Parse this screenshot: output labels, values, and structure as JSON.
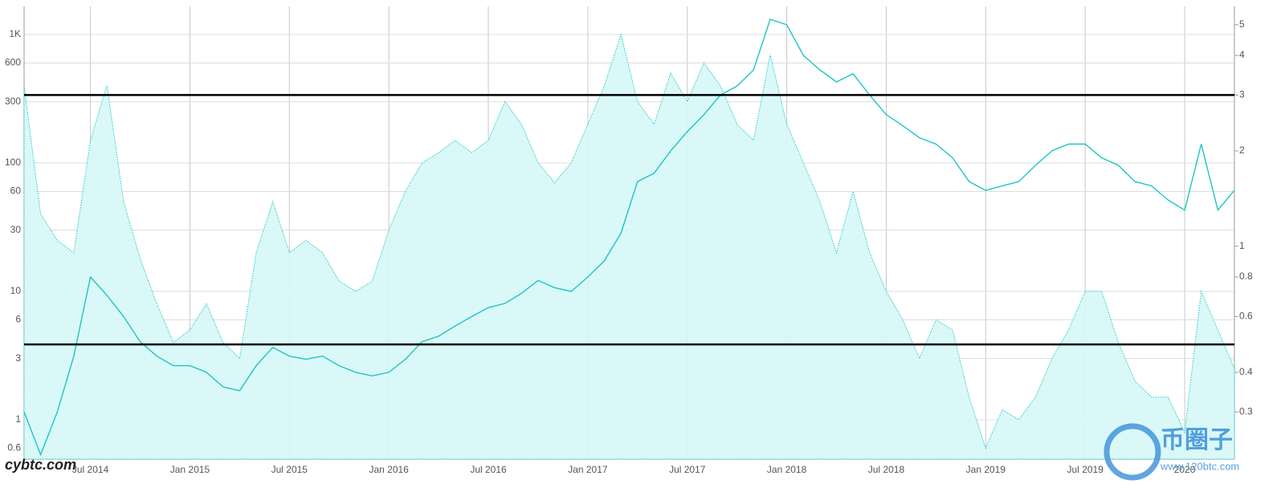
{
  "chart_data": {
    "type": "line",
    "x": [
      "2014-03",
      "2014-04",
      "2014-05",
      "2014-06",
      "2014-07",
      "2014-08",
      "2014-09",
      "2014-10",
      "2014-11",
      "2014-12",
      "2015-01",
      "2015-02",
      "2015-03",
      "2015-04",
      "2015-05",
      "2015-06",
      "2015-07",
      "2015-08",
      "2015-09",
      "2015-10",
      "2015-11",
      "2015-12",
      "2016-01",
      "2016-02",
      "2016-03",
      "2016-04",
      "2016-05",
      "2016-06",
      "2016-07",
      "2016-08",
      "2016-09",
      "2016-10",
      "2016-11",
      "2016-12",
      "2017-01",
      "2017-02",
      "2017-03",
      "2017-04",
      "2017-05",
      "2017-06",
      "2017-07",
      "2017-08",
      "2017-09",
      "2017-10",
      "2017-11",
      "2017-12",
      "2018-01",
      "2018-02",
      "2018-03",
      "2018-04",
      "2018-05",
      "2018-06",
      "2018-07",
      "2018-08",
      "2018-09",
      "2018-10",
      "2018-11",
      "2018-12",
      "2019-01",
      "2019-02",
      "2019-03",
      "2019-04",
      "2019-05",
      "2019-06",
      "2019-07",
      "2019-08",
      "2019-09",
      "2019-10",
      "2019-11",
      "2019-12",
      "2020-01",
      "2020-02",
      "2020-03",
      "2020-04"
    ],
    "xlim": [
      "2014-03",
      "2020-04"
    ],
    "xticks": [
      {
        "value": "2014-07",
        "label": "Jul 2014"
      },
      {
        "value": "2015-01",
        "label": "Jan 2015"
      },
      {
        "value": "2015-07",
        "label": "Jul 2015"
      },
      {
        "value": "2016-01",
        "label": "Jan 2016"
      },
      {
        "value": "2016-07",
        "label": "Jul 2016"
      },
      {
        "value": "2017-01",
        "label": "Jan 2017"
      },
      {
        "value": "2017-07",
        "label": "Jul 2017"
      },
      {
        "value": "2018-01",
        "label": "Jan 2018"
      },
      {
        "value": "2018-07",
        "label": "Jul 2018"
      },
      {
        "value": "2019-01",
        "label": "Jan 2019"
      },
      {
        "value": "2019-07",
        "label": "Jul 2019"
      },
      {
        "value": "2020-01",
        "label": "2020"
      }
    ],
    "log_scale": true,
    "grid": true,
    "ylim": [
      0.494,
      1656
    ],
    "yticks": [
      0.6,
      1,
      3,
      6,
      10,
      30,
      60,
      100,
      300,
      600,
      {
        "value": 1000,
        "label": "1K"
      }
    ],
    "y2lim": [
      0.213,
      5.71
    ],
    "y2ticks": [
      0.3,
      0.4,
      0.6,
      0.8,
      1,
      2,
      3,
      4,
      5
    ],
    "hlines_y2": [
      3,
      0.49
    ],
    "series": [
      {
        "color": "#22c8c8",
        "fill": "#d6f7f7",
        "values": [
          400,
          40,
          25,
          20,
          150,
          400,
          50,
          18,
          8,
          4,
          5,
          8,
          4,
          3,
          20,
          50,
          20,
          25,
          20,
          12,
          10,
          12,
          30,
          60,
          100,
          120,
          150,
          120,
          150,
          300,
          200,
          100,
          70,
          100,
          200,
          400,
          1000,
          300,
          200,
          500,
          300,
          600,
          400,
          200,
          150,
          700,
          200,
          100,
          50,
          20,
          60,
          20,
          10,
          6,
          3,
          6,
          5,
          1.5,
          0.6,
          1.2,
          1,
          1.5,
          3,
          5,
          10,
          10,
          4,
          2,
          1.5,
          1.5,
          0.8,
          10,
          5,
          2.5
        ]
      },
      {
        "color": "#1fc4c4",
        "axis": "y2",
        "values": [
          0.3,
          0.22,
          0.3,
          0.45,
          0.8,
          0.7,
          0.6,
          0.5,
          0.45,
          0.42,
          0.42,
          0.4,
          0.36,
          0.35,
          0.42,
          0.48,
          0.45,
          0.44,
          0.45,
          0.42,
          0.4,
          0.39,
          0.4,
          0.44,
          0.5,
          0.52,
          0.56,
          0.6,
          0.64,
          0.66,
          0.71,
          0.78,
          0.74,
          0.72,
          0.8,
          0.9,
          1.1,
          1.6,
          1.7,
          2.0,
          2.3,
          2.6,
          3.0,
          3.2,
          3.6,
          5.2,
          5.0,
          4.0,
          3.6,
          3.3,
          3.5,
          3.0,
          2.6,
          2.4,
          2.2,
          2.1,
          1.9,
          1.6,
          1.5,
          1.55,
          1.6,
          1.8,
          2.0,
          2.1,
          2.1,
          1.9,
          1.8,
          1.6,
          1.55,
          1.4,
          1.3,
          2.1,
          1.3,
          1.5
        ]
      }
    ],
    "watermarks": [
      "cybtc.com",
      "币圈子",
      "www.120btc.com"
    ]
  }
}
